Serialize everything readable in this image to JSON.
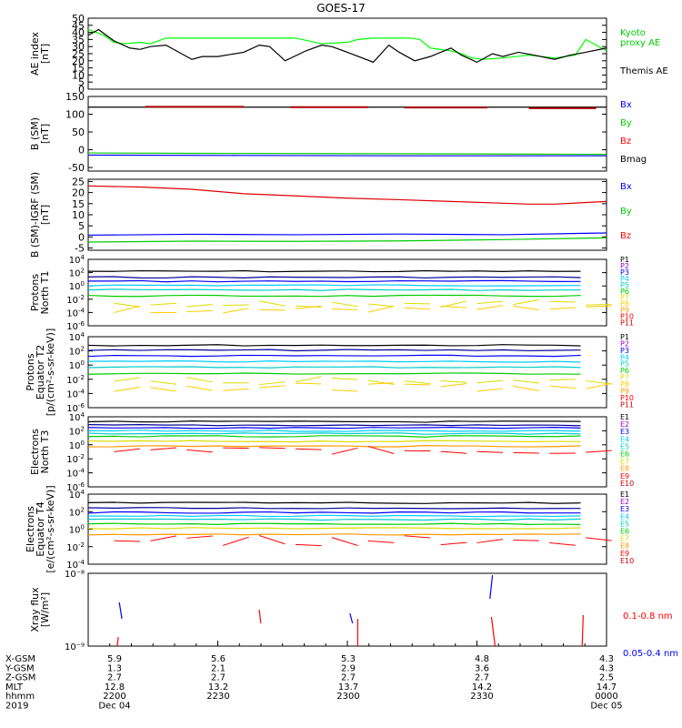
{
  "title": "GOES-17",
  "colors": {
    "black": "#000000",
    "red": "#ff0000",
    "darkred": "#cc0000",
    "green": "#00cc00",
    "lime": "#00ff00",
    "blue": "#0000ff",
    "navy": "#000099",
    "purple": "#9900cc",
    "cyan": "#00ccff",
    "teal": "#00cccc",
    "yellow": "#dddd00",
    "orange": "#ff9900",
    "gold": "#ffcc00"
  },
  "chart_data": [
    {
      "id": "ae",
      "type": "line",
      "ylabel": [
        "AE index",
        "[nT]"
      ],
      "ylim": [
        0,
        50
      ],
      "yticks": [
        "0",
        "5",
        "10",
        "15",
        "20",
        "25",
        "30",
        "35",
        "40",
        "45",
        "50"
      ],
      "legend": [
        {
          "text": "Kyoto",
          "color": "#00cc00"
        },
        {
          "text": "proxy AE",
          "color": "#00cc00"
        },
        {
          "text": "Themis AE",
          "color": "#000000"
        }
      ],
      "series": [
        {
          "name": "Kyoto AE",
          "color": "#00ff00",
          "x": [
            0,
            0.03,
            0.05,
            0.07,
            0.1,
            0.12,
            0.15,
            0.2,
            0.3,
            0.35,
            0.4,
            0.45,
            0.5,
            0.52,
            0.55,
            0.6,
            0.62,
            0.64,
            0.66,
            0.7,
            0.72,
            0.74,
            0.76,
            0.8,
            0.85,
            0.9,
            0.94,
            0.96,
            0.98,
            1
          ],
          "values": [
            42,
            38,
            33,
            32,
            33,
            32,
            36,
            36,
            36,
            36,
            36,
            32,
            33,
            35,
            36,
            36,
            36,
            35,
            29,
            27,
            25,
            22,
            21,
            22,
            24,
            22,
            24,
            35,
            31,
            27
          ]
        },
        {
          "name": "Themis AE",
          "color": "#000000",
          "x": [
            0,
            0.02,
            0.05,
            0.08,
            0.1,
            0.12,
            0.15,
            0.18,
            0.2,
            0.22,
            0.25,
            0.3,
            0.33,
            0.35,
            0.38,
            0.42,
            0.45,
            0.47,
            0.5,
            0.55,
            0.58,
            0.6,
            0.63,
            0.66,
            0.7,
            0.72,
            0.75,
            0.78,
            0.8,
            0.83,
            0.86,
            0.9,
            0.93,
            0.96,
            1
          ],
          "values": [
            38,
            42,
            34,
            29,
            28,
            30,
            31,
            25,
            21,
            23,
            23,
            26,
            31,
            30,
            20,
            27,
            31,
            30,
            26,
            19,
            31,
            26,
            20,
            23,
            29,
            24,
            19,
            25,
            23,
            26,
            24,
            21,
            24,
            26,
            29
          ]
        }
      ]
    },
    {
      "id": "bsm",
      "type": "line",
      "ylabel": [
        "B (SM)",
        "[nT]"
      ],
      "ylim": [
        -60,
        150
      ],
      "yticks": [
        "-50",
        "0",
        "50",
        "100",
        "150"
      ],
      "yticks_v": [
        -50,
        0,
        50,
        100,
        150
      ],
      "legend": [
        {
          "text": "Bx",
          "color": "#0000ff"
        },
        {
          "text": "By",
          "color": "#00cc00"
        },
        {
          "text": "Bz",
          "color": "#ff0000"
        },
        {
          "text": "Bmag",
          "color": "#000000"
        }
      ],
      "series": [
        {
          "name": "Bmag",
          "color": "#000000",
          "x": [
            0,
            1
          ],
          "values": [
            120,
            120
          ]
        },
        {
          "name": "Bz",
          "color": "#aa0000",
          "x": [
            0.09,
            0.08,
            0.12,
            0.3
          ],
          "values": [
            122,
            122,
            121,
            121
          ],
          "segments": [
            [
              0.11,
              0.3,
              121
            ],
            [
              0.39,
              0.54,
              120
            ],
            [
              0.61,
              0.77,
              119
            ],
            [
              0.85,
              0.98,
              117
            ]
          ]
        },
        {
          "name": "By",
          "color": "#00cc00",
          "x": [
            0,
            0.2,
            0.5,
            0.8,
            1
          ],
          "values": [
            -9,
            -10,
            -11,
            -12,
            -13
          ]
        },
        {
          "name": "Bx",
          "color": "#0000ff",
          "x": [
            0,
            0.3,
            0.6,
            1
          ],
          "values": [
            -15,
            -16,
            -17,
            -17
          ]
        }
      ]
    },
    {
      "id": "bdiff",
      "type": "line",
      "ylabel": [
        "B (SM)-IGRF (SM)",
        "[nT]"
      ],
      "ylim": [
        -6,
        26
      ],
      "yticks": [
        "-5",
        "0",
        "5",
        "10",
        "15",
        "20",
        "25"
      ],
      "yticks_v": [
        -5,
        0,
        5,
        10,
        15,
        20,
        25
      ],
      "legend": [
        {
          "text": "Bx",
          "color": "#0000ff"
        },
        {
          "text": "By",
          "color": "#00cc00"
        },
        {
          "text": "Bz",
          "color": "#ff0000"
        }
      ],
      "series": [
        {
          "name": "Bz",
          "color": "#dd0000",
          "x": [
            0,
            0.1,
            0.2,
            0.3,
            0.4,
            0.5,
            0.6,
            0.7,
            0.8,
            0.85,
            0.9,
            1
          ],
          "values": [
            23,
            22.5,
            21.5,
            19.5,
            18.5,
            17.5,
            16.8,
            16,
            15.2,
            14.8,
            14.8,
            16
          ]
        },
        {
          "name": "Bx",
          "color": "#0000ff",
          "x": [
            0,
            0.2,
            0.4,
            0.6,
            0.8,
            1
          ],
          "values": [
            0.8,
            1.2,
            1.0,
            1.3,
            1.0,
            1.8
          ]
        },
        {
          "name": "By",
          "color": "#00cc00",
          "x": [
            0,
            0.2,
            0.4,
            0.6,
            0.8,
            1
          ],
          "values": [
            -2.3,
            -1.9,
            -2.0,
            -1.8,
            -1.2,
            -0.4
          ]
        }
      ]
    },
    {
      "id": "pn",
      "type": "line",
      "log": true,
      "ylabel": [
        "Protons",
        "North T1"
      ],
      "yexp": [
        -6,
        -4,
        -2,
        0,
        2,
        4
      ],
      "legend": [
        {
          "text": "P1",
          "color": "#000000"
        },
        {
          "text": "P2",
          "color": "#9900cc"
        },
        {
          "text": "P3",
          "color": "#0000ff"
        },
        {
          "text": "P4",
          "color": "#00ccff"
        },
        {
          "text": "P5",
          "color": "#00cccc"
        },
        {
          "text": "P6",
          "color": "#00cc00"
        },
        {
          "text": "P7",
          "color": "#dddd00"
        },
        {
          "text": "P8",
          "color": "#ffcc00"
        },
        {
          "text": "P9",
          "color": "#ff9900"
        },
        {
          "text": "P10",
          "color": "#ff0000"
        },
        {
          "text": "P11",
          "color": "#cc0000"
        }
      ],
      "levels": [
        {
          "color": "#000000",
          "v": 2.2
        },
        {
          "color": "#000099",
          "v": 1.3
        },
        {
          "color": "#0000ff",
          "v": 0.7
        },
        {
          "color": "#00ccff",
          "v": 0.1
        },
        {
          "color": "#00cccc",
          "v": -0.6
        },
        {
          "color": "#00cc00",
          "v": -1.5
        }
      ],
      "noisy": [
        {
          "color": "#dddd00",
          "base": -2.6
        },
        {
          "color": "#ffcc00",
          "base": -3.5
        }
      ]
    },
    {
      "id": "pe",
      "type": "line",
      "log": true,
      "ylabel": [
        "Protons",
        "Equator T2",
        "[p/(cm²-s-sr-keV)]"
      ],
      "yexp": [
        -6,
        -4,
        -2,
        0,
        2,
        4
      ],
      "legend": [
        {
          "text": "P1",
          "color": "#000000"
        },
        {
          "text": "P2",
          "color": "#9900cc"
        },
        {
          "text": "P3",
          "color": "#0000ff"
        },
        {
          "text": "P4",
          "color": "#00ccff"
        },
        {
          "text": "P5",
          "color": "#00cccc"
        },
        {
          "text": "P6",
          "color": "#00cc00"
        },
        {
          "text": "P7",
          "color": "#dddd00"
        },
        {
          "text": "P8",
          "color": "#ffcc00"
        },
        {
          "text": "P9",
          "color": "#ff9900"
        },
        {
          "text": "P10",
          "color": "#ff0000"
        },
        {
          "text": "P11",
          "color": "#cc0000"
        }
      ],
      "levels": [
        {
          "color": "#000000",
          "v": 2.8
        },
        {
          "color": "#000099",
          "v": 2.1
        },
        {
          "color": "#0000ff",
          "v": 1.3
        },
        {
          "color": "#00ccff",
          "v": 0.5
        },
        {
          "color": "#00cccc",
          "v": -0.3
        },
        {
          "color": "#00cc00",
          "v": -1.2
        }
      ],
      "noisy": [
        {
          "color": "#dddd00",
          "base": -2.2
        },
        {
          "color": "#ffcc00",
          "base": -3.1
        }
      ]
    },
    {
      "id": "en",
      "type": "line",
      "log": true,
      "ylabel": [
        "Electrons",
        "North T3"
      ],
      "yexp": [
        -6,
        -4,
        -2,
        0,
        2,
        4
      ],
      "legend": [
        {
          "text": "E1",
          "color": "#000000"
        },
        {
          "text": "E2",
          "color": "#9900cc"
        },
        {
          "text": "E3",
          "color": "#0000ff"
        },
        {
          "text": "E4",
          "color": "#00ccff"
        },
        {
          "text": "E5",
          "color": "#00cccc"
        },
        {
          "text": "E6",
          "color": "#00cc00"
        },
        {
          "text": "E7",
          "color": "#dddd00"
        },
        {
          "text": "E8",
          "color": "#ff9900"
        },
        {
          "text": "E9",
          "color": "#ff0000"
        },
        {
          "text": "E10",
          "color": "#cc0000"
        }
      ],
      "levels": [
        {
          "color": "#000000",
          "v": 3.3
        },
        {
          "color": "#000099",
          "v": 2.8
        },
        {
          "color": "#0000ff",
          "v": 2.4
        },
        {
          "color": "#00ccff",
          "v": 2.0
        },
        {
          "color": "#00cccc",
          "v": 1.6
        },
        {
          "color": "#00cc00",
          "v": 1.2
        },
        {
          "color": "#dddd00",
          "v": 0.5
        },
        {
          "color": "#ff9900",
          "v": -0.2
        }
      ],
      "noisy": [
        {
          "color": "#ff0000",
          "base": -0.8
        }
      ]
    },
    {
      "id": "ee",
      "type": "line",
      "log": true,
      "ylabel": [
        "Electrons",
        "Equator T4",
        "[e/(cm²-s-sr-keV)]"
      ],
      "yexp": [
        -4,
        -2,
        0,
        2,
        4
      ],
      "legend": [
        {
          "text": "E1",
          "color": "#000000"
        },
        {
          "text": "E2",
          "color": "#9900cc"
        },
        {
          "text": "E3",
          "color": "#0000ff"
        },
        {
          "text": "E4",
          "color": "#00ccff"
        },
        {
          "text": "E5",
          "color": "#00cccc"
        },
        {
          "text": "E6",
          "color": "#00cc00"
        },
        {
          "text": "E7",
          "color": "#dddd00"
        },
        {
          "text": "E8",
          "color": "#ff9900"
        },
        {
          "text": "E9",
          "color": "#ff0000"
        },
        {
          "text": "E10",
          "color": "#cc0000"
        }
      ],
      "levels": [
        {
          "color": "#000000",
          "v": 3.0
        },
        {
          "color": "#000099",
          "v": 2.4
        },
        {
          "color": "#0000ff",
          "v": 1.9
        },
        {
          "color": "#00ccff",
          "v": 1.5
        },
        {
          "color": "#00cccc",
          "v": 1.1
        },
        {
          "color": "#00cc00",
          "v": 0.6
        },
        {
          "color": "#dddd00",
          "v": 0.1
        },
        {
          "color": "#ff9900",
          "v": -0.6
        }
      ],
      "noisy": [
        {
          "color": "#ff0000",
          "base": -1.3
        }
      ]
    },
    {
      "id": "xray",
      "type": "line",
      "log": true,
      "ylabel": [
        "Xray flux",
        "[W/m²]"
      ],
      "ylabels_exp": [
        "10⁻⁹",
        "10⁻⁸"
      ],
      "legend": [
        {
          "text": "0.1-0.8 nm",
          "color": "#ff0000"
        },
        {
          "text": "0.05-0.4 nm",
          "color": "#0000ff"
        }
      ]
    }
  ],
  "x_axis": {
    "rows": [
      {
        "label": "X-GSM",
        "values": [
          "5.9",
          "5.6",
          "5.3",
          "4.8",
          "4.3"
        ]
      },
      {
        "label": "Y-GSM",
        "values": [
          "1.3",
          "2.1",
          "2.9",
          "3.6",
          "4.3"
        ]
      },
      {
        "label": "Z-GSM",
        "values": [
          "2.7",
          "2.7",
          "2.7",
          "2.7",
          "2.5"
        ]
      },
      {
        "label": "MLT",
        "values": [
          "12.8",
          "13.2",
          "13.7",
          "14.2",
          "14.7"
        ]
      },
      {
        "label": "hhmm",
        "values": [
          "2200",
          "2230",
          "2300",
          "2330",
          "0000"
        ]
      },
      {
        "label": "2019",
        "values": [
          "Dec 04",
          "",
          "",
          "",
          "Dec 05"
        ]
      }
    ]
  }
}
